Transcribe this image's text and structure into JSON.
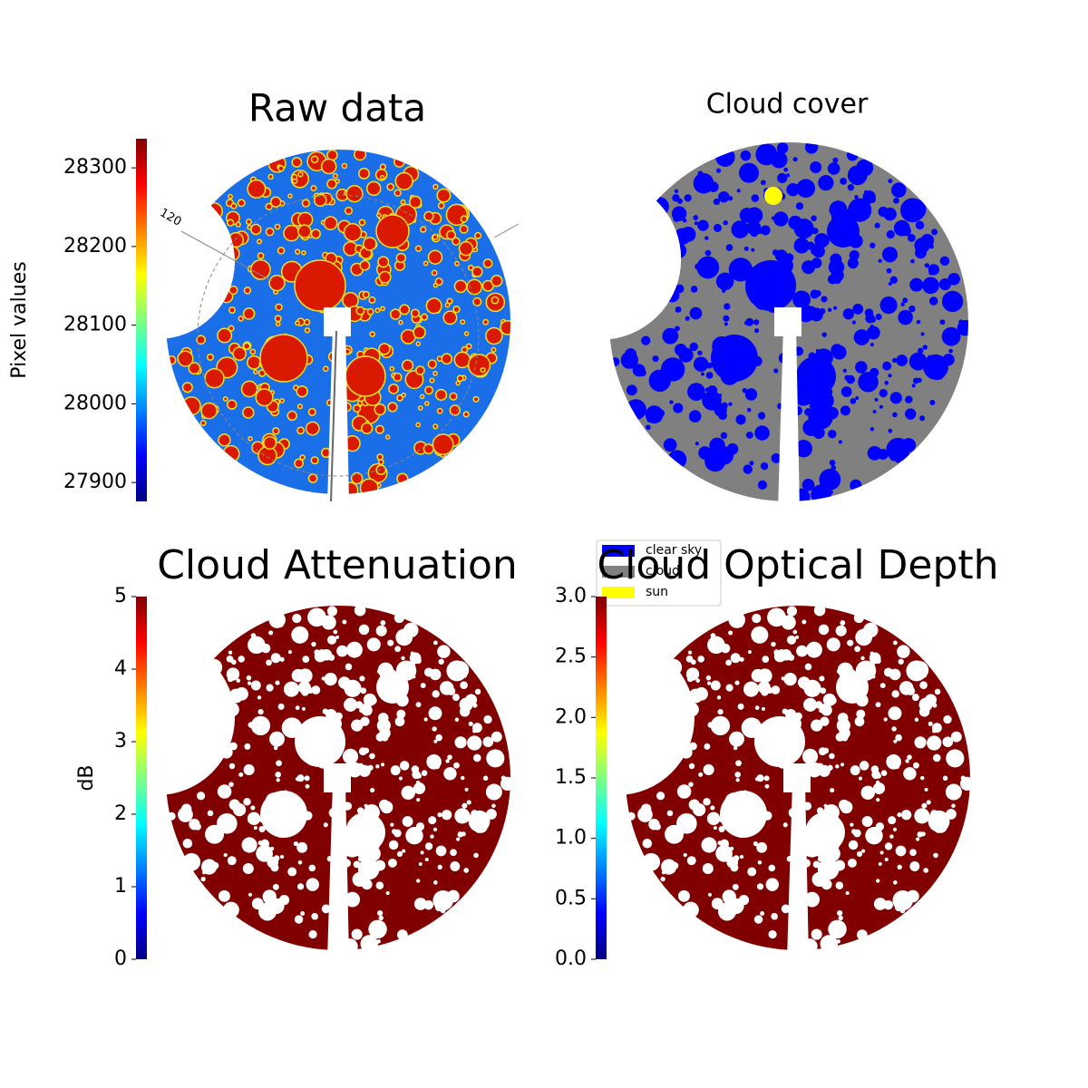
{
  "chart_data": [
    {
      "type": "image",
      "title": "Raw data",
      "annotations": [
        "120"
      ],
      "colorbar": {
        "label": "Pixel values",
        "colormap": "jet",
        "ylim": [
          27876,
          28337
        ],
        "yticks": [
          27900,
          28000,
          28100,
          28200,
          28300
        ]
      }
    },
    {
      "type": "image",
      "title": "Cloud cover",
      "legend": [
        {
          "name": "clear sky",
          "color": "#0000ff"
        },
        {
          "name": "cloud",
          "color": "#808080"
        },
        {
          "name": "sun",
          "color": "#ffff00"
        }
      ]
    },
    {
      "type": "image",
      "title": "Cloud Attenuation",
      "colorbar": {
        "label": "dB",
        "colormap": "jet",
        "ylim": [
          0,
          5
        ],
        "yticks": [
          0,
          1,
          2,
          3,
          4,
          5
        ]
      }
    },
    {
      "type": "image",
      "title": "Cloud Optical Depth",
      "colorbar": {
        "colormap": "jet",
        "ylim": [
          0,
          3
        ],
        "yticks": [
          {
            "value": 0,
            "label": "0.0"
          },
          0.5,
          {
            "value": 1,
            "label": "1.0"
          },
          1.5,
          {
            "value": 2,
            "label": "2.0"
          },
          2.5,
          {
            "value": 3,
            "label": "3.0"
          }
        ]
      }
    }
  ]
}
